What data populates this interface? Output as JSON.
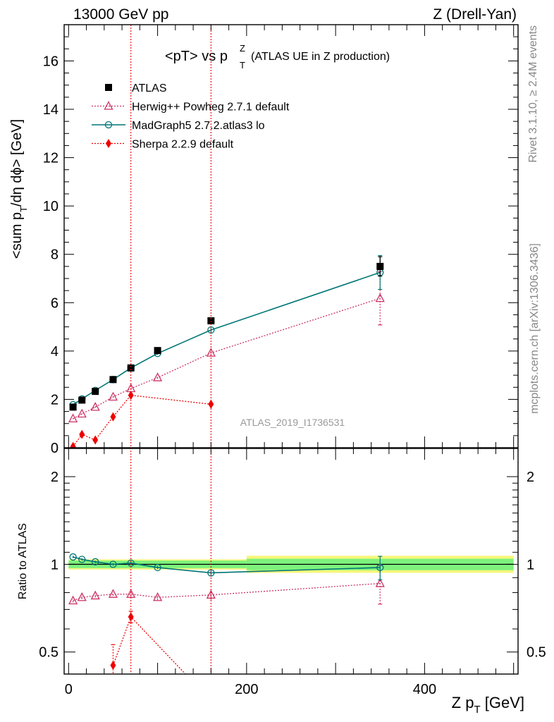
{
  "header": {
    "left": "13000 GeV pp",
    "right": "Z (Drell-Yan)"
  },
  "side": {
    "rivet": "Rivet 3.1.10, ≥ 2.4M events",
    "mcplots": "mcplots.cern.ch [arXiv:1306.3436]"
  },
  "watermark": "ATLAS_2019_I1736531",
  "colors": {
    "data": "#000000",
    "herwig": "#cc3366",
    "madgraph": "#007575",
    "sherpa": "#ee0000",
    "band_inner": "#7df27d",
    "band_outer": "#f6f67a"
  },
  "chart_data": [
    {
      "id": "main",
      "type": "line",
      "title_main": "<pT> vs p",
      "title_sup": "Z",
      "title_sub": "T",
      "title_extra": "(ATLAS UE in Z production)",
      "ylabel_a": "<sum p",
      "ylabel_sub": "T",
      "ylabel_b": "/dη dϕ> [GeV]",
      "xlim": [
        -5,
        505
      ],
      "ylim": [
        0,
        17.5
      ],
      "yticks": [
        0,
        2,
        4,
        6,
        8,
        10,
        12,
        14,
        16
      ],
      "legend_position": "top-left",
      "x": [
        5,
        15,
        30,
        50,
        70,
        100,
        160,
        350
      ],
      "series": [
        {
          "name": "ATLAS",
          "key": "data",
          "marker": "square",
          "values": [
            1.68,
            1.97,
            2.33,
            2.82,
            3.3,
            4.02,
            5.25,
            7.5
          ],
          "errors": [
            0.06,
            0.06,
            0.07,
            0.07,
            0.08,
            0.1,
            0.12,
            0.4
          ]
        },
        {
          "name": "Herwig++ Powheg 2.7.1 default",
          "key": "herwig",
          "marker": "triangle",
          "values": [
            1.2,
            1.4,
            1.68,
            2.1,
            2.45,
            2.9,
            3.92,
            6.18
          ],
          "errors": [
            0.02,
            0.02,
            0.03,
            0.03,
            0.05,
            0.05,
            0.1,
            1.1
          ]
        },
        {
          "name": "MadGraph5 2.7.2.atlas3 lo",
          "key": "madgraph",
          "marker": "circle",
          "values": [
            1.78,
            2.02,
            2.37,
            2.82,
            3.3,
            3.9,
            4.87,
            7.25
          ],
          "errors": [
            0.02,
            0.02,
            0.03,
            0.04,
            0.05,
            0.06,
            0.1,
            0.7
          ]
        },
        {
          "name": "Sherpa 2.2.9 default",
          "key": "sherpa",
          "marker": "diamond",
          "values": [
            0.05,
            0.55,
            0.32,
            1.28,
            2.17,
            null,
            1.8,
            null
          ],
          "errors": [
            0.05,
            0.05,
            0.05,
            0.1,
            0.1,
            null,
            0.1,
            null
          ]
        }
      ],
      "vlines": [
        70,
        160
      ]
    },
    {
      "id": "ratio",
      "type": "line",
      "ylabel": "Ratio to ATLAS",
      "xlabel_a": "Z p",
      "xlabel_sub": "T",
      "xlabel_b": " [GeV]",
      "xlim": [
        -5,
        505
      ],
      "ylim_log": [
        0.42,
        2.5
      ],
      "yticks": [
        0.5,
        1,
        2
      ],
      "ytick_labels": [
        "0.5",
        "1",
        "2"
      ],
      "xticks": [
        0,
        200,
        400
      ],
      "x": [
        5,
        15,
        30,
        50,
        70,
        100,
        160,
        350
      ],
      "bands": [
        {
          "x0": 0,
          "x1": 200,
          "inner": [
            0.97,
            1.03
          ],
          "outer": [
            0.96,
            1.04
          ]
        },
        {
          "x0": 200,
          "x1": 500,
          "inner": [
            0.955,
            1.045
          ],
          "outer": [
            0.935,
            1.07
          ]
        }
      ],
      "series": [
        {
          "name": "Herwig++ Powheg 2.7.1 default",
          "key": "herwig",
          "marker": "triangle",
          "values": [
            0.75,
            0.77,
            0.78,
            0.79,
            0.79,
            0.77,
            0.785,
            0.86
          ],
          "errors": [
            0.01,
            0.01,
            0.01,
            0.01,
            0.015,
            0.015,
            0.03,
            0.13
          ]
        },
        {
          "name": "MadGraph5 2.7.2.atlas3 lo",
          "key": "madgraph",
          "marker": "circle",
          "values": [
            1.06,
            1.04,
            1.02,
            1.0,
            1.01,
            0.975,
            0.935,
            0.975
          ],
          "errors": [
            0.01,
            0.01,
            0.01,
            0.01,
            0.012,
            0.012,
            0.02,
            0.09
          ]
        },
        {
          "name": "Sherpa 2.2.9 default",
          "key": "sherpa",
          "marker": "diamond",
          "values": [
            null,
            null,
            null,
            0.45,
            0.66,
            null,
            0.34,
            null
          ],
          "errors": [
            null,
            null,
            null,
            0.08,
            0.03,
            null,
            0.03,
            null
          ]
        }
      ],
      "vlines": [
        70,
        160
      ]
    }
  ]
}
